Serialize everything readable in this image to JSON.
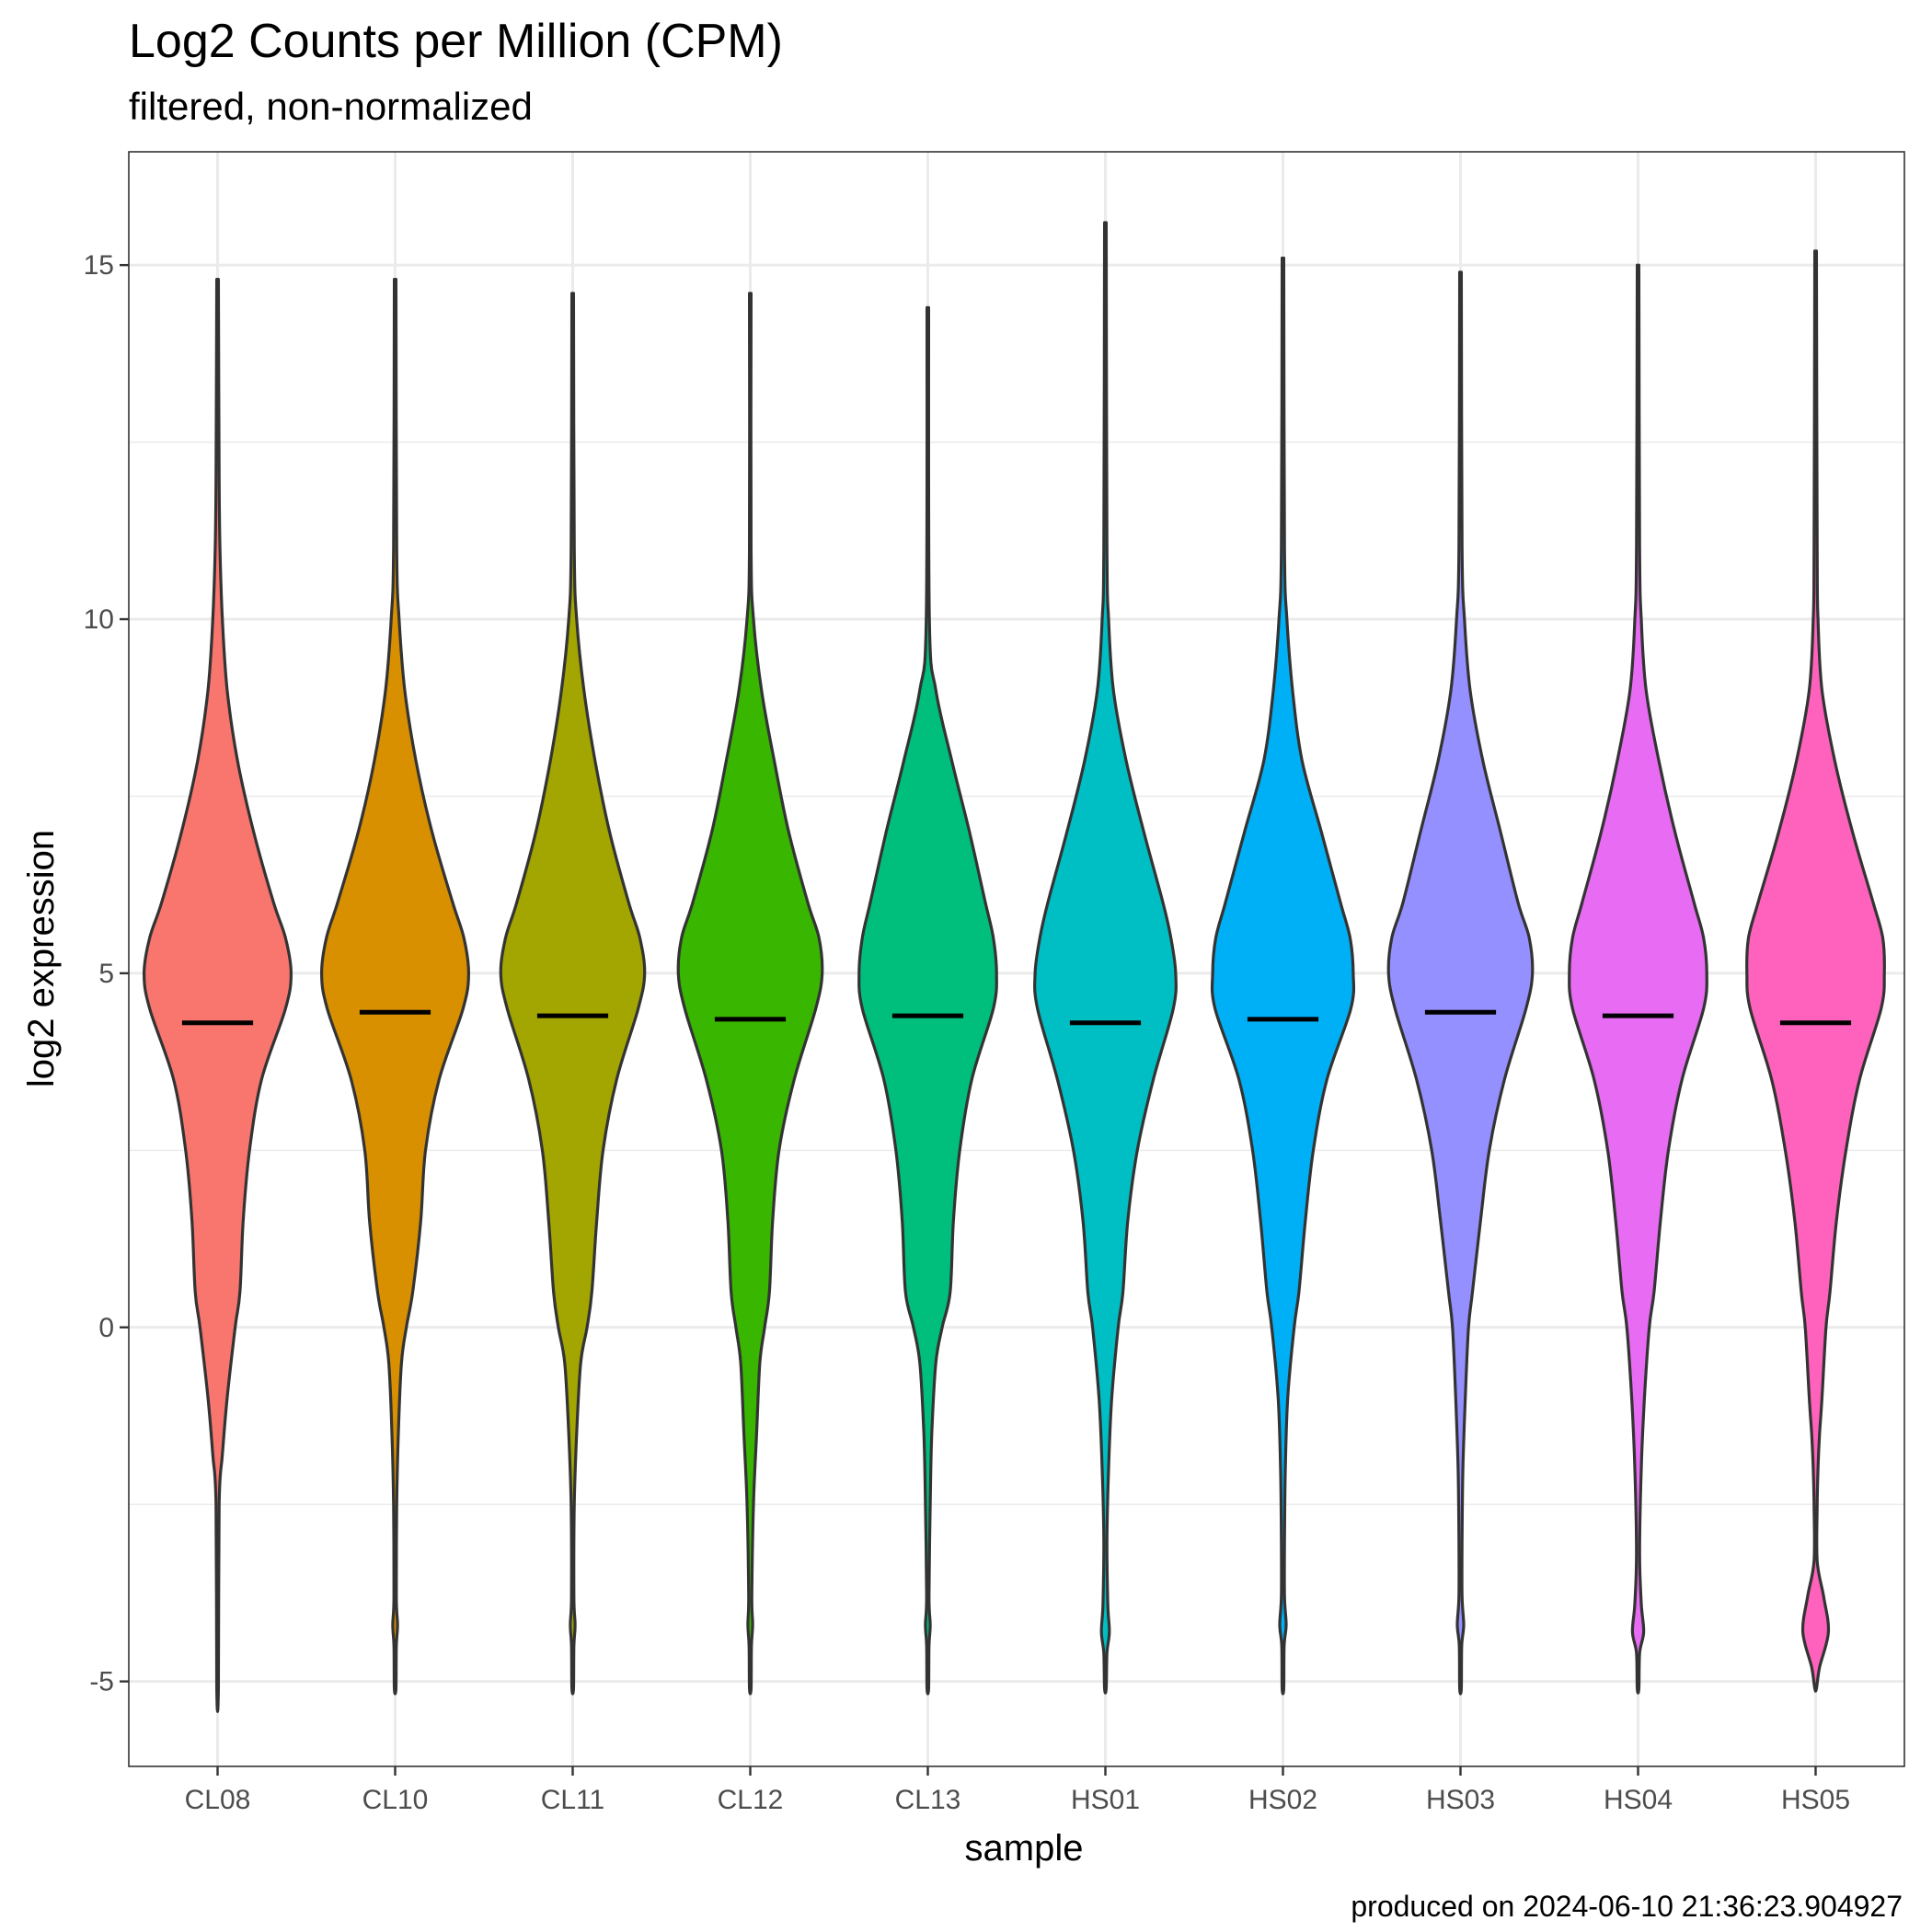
{
  "chart_data": {
    "type": "violin",
    "title": "Log2 Counts per Million (CPM)",
    "subtitle": "filtered, non-normalized",
    "xlabel": "sample",
    "ylabel": "log2 expression",
    "caption": "produced on 2024-06-10 21:36:23.904927",
    "ylim": [
      -6.2,
      16.6
    ],
    "yticks": [
      -5,
      0,
      5,
      10,
      15
    ],
    "grid": true,
    "legend": "none",
    "categories": [
      "CL08",
      "CL10",
      "CL11",
      "CL12",
      "CL13",
      "HS01",
      "HS02",
      "HS03",
      "HS04",
      "HS05"
    ],
    "colors": [
      "#F8766D",
      "#D89000",
      "#A3A500",
      "#39B600",
      "#00BF7D",
      "#00BFC4",
      "#00B0F6",
      "#9590FF",
      "#E76BF3",
      "#FF62BC"
    ],
    "series": [
      {
        "name": "CL08",
        "min": -5.1,
        "max": 14.8,
        "median": 4.3,
        "profile": [
          [
            -5.1,
            0.01
          ],
          [
            -2.5,
            0.02
          ],
          [
            -1.8,
            0.06
          ],
          [
            -1,
            0.12
          ],
          [
            0,
            0.22
          ],
          [
            0.5,
            0.28
          ],
          [
            1.5,
            0.32
          ],
          [
            2.5,
            0.4
          ],
          [
            3.5,
            0.55
          ],
          [
            4.5,
            0.85
          ],
          [
            5,
            0.92
          ],
          [
            5.5,
            0.85
          ],
          [
            6,
            0.7
          ],
          [
            7,
            0.45
          ],
          [
            8,
            0.25
          ],
          [
            9,
            0.12
          ],
          [
            10,
            0.06
          ],
          [
            11,
            0.03
          ],
          [
            12,
            0.02
          ],
          [
            14.8,
            0.01
          ]
        ]
      },
      {
        "name": "CL10",
        "min": -5.1,
        "max": 14.8,
        "median": 4.45,
        "profile": [
          [
            -5.1,
            0.01
          ],
          [
            -4.5,
            0.015
          ],
          [
            -4.2,
            0.03
          ],
          [
            -3.8,
            0.015
          ],
          [
            -2.5,
            0.02
          ],
          [
            -1.5,
            0.04
          ],
          [
            -0.5,
            0.08
          ],
          [
            0,
            0.14
          ],
          [
            0.5,
            0.22
          ],
          [
            1.5,
            0.32
          ],
          [
            2.5,
            0.38
          ],
          [
            3.5,
            0.55
          ],
          [
            4.5,
            0.85
          ],
          [
            5,
            0.92
          ],
          [
            5.5,
            0.86
          ],
          [
            6,
            0.72
          ],
          [
            7,
            0.46
          ],
          [
            8,
            0.26
          ],
          [
            9,
            0.12
          ],
          [
            10,
            0.05
          ],
          [
            11,
            0.02
          ],
          [
            14.8,
            0.01
          ]
        ]
      },
      {
        "name": "CL11",
        "min": -5.1,
        "max": 14.6,
        "median": 4.4,
        "profile": [
          [
            -5.1,
            0.01
          ],
          [
            -4.5,
            0.015
          ],
          [
            -4.2,
            0.03
          ],
          [
            -3.8,
            0.015
          ],
          [
            -2.5,
            0.02
          ],
          [
            -1.5,
            0.05
          ],
          [
            -0.5,
            0.1
          ],
          [
            0,
            0.18
          ],
          [
            0.5,
            0.24
          ],
          [
            1.5,
            0.3
          ],
          [
            2.5,
            0.38
          ],
          [
            3.5,
            0.55
          ],
          [
            4.5,
            0.82
          ],
          [
            5,
            0.9
          ],
          [
            5.5,
            0.84
          ],
          [
            6,
            0.7
          ],
          [
            7,
            0.46
          ],
          [
            8,
            0.28
          ],
          [
            9,
            0.14
          ],
          [
            10,
            0.05
          ],
          [
            11,
            0.02
          ],
          [
            14.6,
            0.01
          ]
        ]
      },
      {
        "name": "CL12",
        "min": -5.1,
        "max": 14.6,
        "median": 4.35,
        "profile": [
          [
            -5.1,
            0.01
          ],
          [
            -4.5,
            0.015
          ],
          [
            -4.2,
            0.03
          ],
          [
            -3.8,
            0.02
          ],
          [
            -2.5,
            0.04
          ],
          [
            -1.5,
            0.08
          ],
          [
            -0.5,
            0.12
          ],
          [
            0,
            0.18
          ],
          [
            0.5,
            0.24
          ],
          [
            1.5,
            0.28
          ],
          [
            2.5,
            0.36
          ],
          [
            3.5,
            0.55
          ],
          [
            4.5,
            0.82
          ],
          [
            5,
            0.9
          ],
          [
            5.5,
            0.86
          ],
          [
            6,
            0.72
          ],
          [
            7,
            0.48
          ],
          [
            8,
            0.3
          ],
          [
            9,
            0.14
          ],
          [
            10,
            0.04
          ],
          [
            11,
            0.01
          ],
          [
            14.6,
            0.01
          ]
        ]
      },
      {
        "name": "CL13",
        "min": -5.1,
        "max": 14.4,
        "median": 4.4,
        "profile": [
          [
            -5.1,
            0.01
          ],
          [
            -4.5,
            0.015
          ],
          [
            -4.2,
            0.03
          ],
          [
            -3.8,
            0.015
          ],
          [
            -2.5,
            0.03
          ],
          [
            -1.5,
            0.05
          ],
          [
            -0.5,
            0.1
          ],
          [
            0,
            0.18
          ],
          [
            0.5,
            0.28
          ],
          [
            1.5,
            0.32
          ],
          [
            2.5,
            0.4
          ],
          [
            3.5,
            0.55
          ],
          [
            4.5,
            0.82
          ],
          [
            5,
            0.86
          ],
          [
            5.5,
            0.82
          ],
          [
            6,
            0.72
          ],
          [
            7,
            0.52
          ],
          [
            8,
            0.3
          ],
          [
            9,
            0.1
          ],
          [
            10,
            0.02
          ],
          [
            14.4,
            0.01
          ]
        ]
      },
      {
        "name": "HS01",
        "min": -5.1,
        "max": 15.6,
        "median": 4.3,
        "profile": [
          [
            -5.1,
            0.01
          ],
          [
            -4.6,
            0.02
          ],
          [
            -4.3,
            0.05
          ],
          [
            -3.9,
            0.03
          ],
          [
            -3,
            0.02
          ],
          [
            -2,
            0.04
          ],
          [
            -1,
            0.08
          ],
          [
            0,
            0.16
          ],
          [
            0.5,
            0.22
          ],
          [
            1.5,
            0.28
          ],
          [
            2.5,
            0.4
          ],
          [
            3.5,
            0.6
          ],
          [
            4.5,
            0.85
          ],
          [
            5,
            0.88
          ],
          [
            5.5,
            0.82
          ],
          [
            6,
            0.72
          ],
          [
            7,
            0.48
          ],
          [
            8,
            0.26
          ],
          [
            9,
            0.1
          ],
          [
            10,
            0.04
          ],
          [
            11,
            0.02
          ],
          [
            15.6,
            0.01
          ]
        ]
      },
      {
        "name": "HS02",
        "min": -5.1,
        "max": 15.1,
        "median": 4.35,
        "profile": [
          [
            -5.1,
            0.01
          ],
          [
            -4.5,
            0.015
          ],
          [
            -4.2,
            0.04
          ],
          [
            -3.8,
            0.02
          ],
          [
            -3,
            0.02
          ],
          [
            -2,
            0.03
          ],
          [
            -1,
            0.06
          ],
          [
            0,
            0.14
          ],
          [
            0.5,
            0.2
          ],
          [
            1.5,
            0.28
          ],
          [
            2.5,
            0.38
          ],
          [
            3.5,
            0.55
          ],
          [
            4.5,
            0.85
          ],
          [
            5,
            0.88
          ],
          [
            5.5,
            0.84
          ],
          [
            6,
            0.72
          ],
          [
            7,
            0.48
          ],
          [
            8,
            0.24
          ],
          [
            9,
            0.12
          ],
          [
            10,
            0.05
          ],
          [
            11,
            0.02
          ],
          [
            15.1,
            0.01
          ]
        ]
      },
      {
        "name": "HS03",
        "min": -5.1,
        "max": 14.9,
        "median": 4.45,
        "profile": [
          [
            -5.1,
            0.01
          ],
          [
            -4.5,
            0.015
          ],
          [
            -4.2,
            0.04
          ],
          [
            -3.8,
            0.02
          ],
          [
            -3,
            0.02
          ],
          [
            -2,
            0.03
          ],
          [
            -1,
            0.06
          ],
          [
            0,
            0.1
          ],
          [
            0.5,
            0.15
          ],
          [
            1.5,
            0.25
          ],
          [
            2.5,
            0.36
          ],
          [
            3.5,
            0.55
          ],
          [
            4.5,
            0.82
          ],
          [
            5,
            0.9
          ],
          [
            5.5,
            0.86
          ],
          [
            6,
            0.72
          ],
          [
            7,
            0.5
          ],
          [
            8,
            0.28
          ],
          [
            9,
            0.12
          ],
          [
            10,
            0.05
          ],
          [
            11,
            0.02
          ],
          [
            14.9,
            0.01
          ]
        ]
      },
      {
        "name": "HS04",
        "min": -5.1,
        "max": 15.0,
        "median": 4.4,
        "profile": [
          [
            -5.1,
            0.01
          ],
          [
            -4.6,
            0.02
          ],
          [
            -4.3,
            0.07
          ],
          [
            -3.9,
            0.04
          ],
          [
            -3.2,
            0.02
          ],
          [
            -2,
            0.04
          ],
          [
            -1,
            0.08
          ],
          [
            0,
            0.14
          ],
          [
            0.5,
            0.2
          ],
          [
            1.5,
            0.28
          ],
          [
            2.5,
            0.38
          ],
          [
            3.5,
            0.55
          ],
          [
            4.5,
            0.82
          ],
          [
            5,
            0.86
          ],
          [
            5.5,
            0.82
          ],
          [
            6,
            0.7
          ],
          [
            7,
            0.46
          ],
          [
            8,
            0.26
          ],
          [
            9,
            0.1
          ],
          [
            10,
            0.04
          ],
          [
            11,
            0.02
          ],
          [
            15,
            0.01
          ]
        ]
      },
      {
        "name": "HS05",
        "min": -5.1,
        "max": 15.2,
        "median": 4.3,
        "profile": [
          [
            -5.1,
            0.01
          ],
          [
            -4.8,
            0.05
          ],
          [
            -4.3,
            0.16
          ],
          [
            -3.8,
            0.1
          ],
          [
            -3.3,
            0.02
          ],
          [
            -2.5,
            0.02
          ],
          [
            -2,
            0.03
          ],
          [
            -1.5,
            0.05
          ],
          [
            -1,
            0.08
          ],
          [
            0,
            0.13
          ],
          [
            0.5,
            0.18
          ],
          [
            1.5,
            0.26
          ],
          [
            2.5,
            0.38
          ],
          [
            3.5,
            0.55
          ],
          [
            4.5,
            0.82
          ],
          [
            5,
            0.86
          ],
          [
            5.5,
            0.84
          ],
          [
            6,
            0.72
          ],
          [
            7,
            0.46
          ],
          [
            8,
            0.24
          ],
          [
            9,
            0.08
          ],
          [
            10,
            0.03
          ],
          [
            11,
            0.02
          ],
          [
            15.2,
            0.01
          ]
        ]
      }
    ]
  }
}
